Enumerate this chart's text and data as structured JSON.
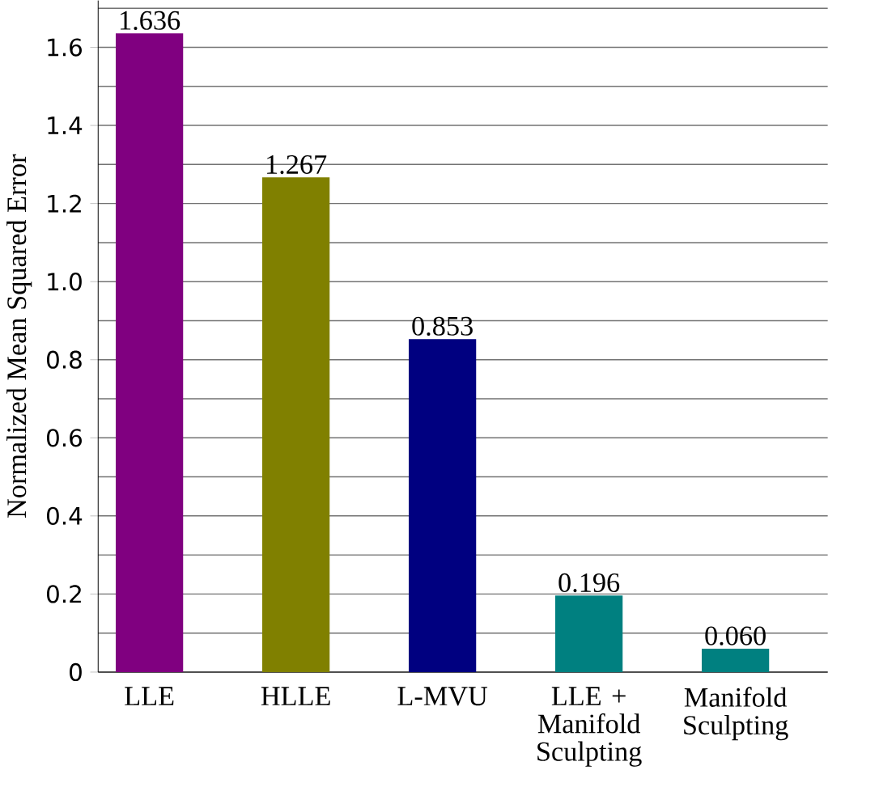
{
  "chart_data": {
    "type": "bar",
    "ylabel": "Normalized Mean Squared Error",
    "categories": [
      "LLE",
      "HLLE",
      "L-MVU",
      "LLE + Manifold Sculpting",
      "Manifold Sculpting"
    ],
    "values": [
      1.636,
      1.267,
      0.853,
      0.196,
      0.06
    ],
    "colors": [
      "#800080",
      "#808000",
      "#000080",
      "#008080",
      "#008080"
    ],
    "value_labels": [
      "1.636",
      "1.267",
      "0.853",
      "0.196",
      "0.060"
    ],
    "ylim": [
      0,
      1.72
    ],
    "yticks": [
      0,
      {
        "value": 0.1,
        "label": null
      },
      0.2,
      {
        "value": 0.3,
        "label": null
      },
      0.4,
      {
        "value": 0.5,
        "label": null
      },
      0.6,
      {
        "value": 0.7,
        "label": null
      },
      0.8,
      {
        "value": 0.9,
        "label": null
      },
      {
        "value": 1,
        "label": "1.0"
      },
      {
        "value": 1.1,
        "label": null
      },
      1.2,
      {
        "value": 1.3,
        "label": null
      },
      1.4,
      {
        "value": 1.5,
        "label": null
      },
      1.6,
      {
        "value": 1.7,
        "label": null
      }
    ],
    "grid": "y"
  }
}
